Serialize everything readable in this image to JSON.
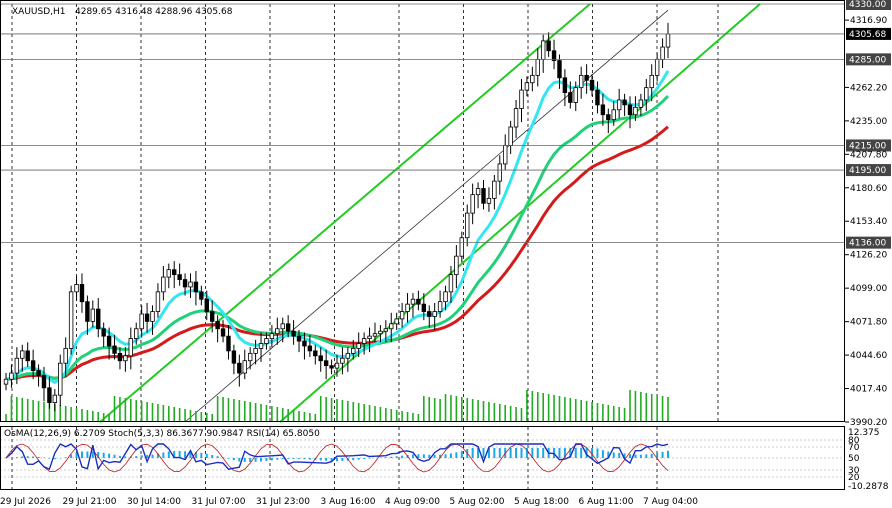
{
  "chart_data": {
    "type": "candlestick",
    "symbol_header": "XAUUSD,H1",
    "ohlc_header": "4289.65 4316.48 4288.96 4305.68",
    "ylim": [
      3990.2,
      4330.0
    ],
    "y_ticks": [
      "4316.90",
      "4262.20",
      "4235.00",
      "4207.80",
      "4180.60",
      "4153.40",
      "4126.20",
      "4099.00",
      "4071.80",
      "4044.60",
      "4017.40",
      "3990.20"
    ],
    "x_ticks": [
      "29 Jul 2026",
      "29 Jul 21:00",
      "30 Jul 14:00",
      "31 Jul 07:00",
      "31 Jul 23:00",
      "3 Aug 16:00",
      "4 Aug 09:00",
      "5 Aug 02:00",
      "5 Aug 18:00",
      "6 Aug 11:00",
      "7 Aug 04:00"
    ],
    "levels": [
      {
        "label": "4330.00",
        "color": "#444444"
      },
      {
        "label": "4305.68",
        "color": "#000000"
      },
      {
        "label": "4285.00",
        "color": "#444444"
      },
      {
        "label": "4215.00",
        "color": "#444444"
      },
      {
        "label": "4195.00",
        "color": "#444444"
      },
      {
        "label": "4136.00",
        "color": "#444444"
      }
    ],
    "closes": [
      4025,
      4030,
      4042,
      4048,
      4040,
      4032,
      4028,
      4018,
      4006,
      4012,
      4038,
      4050,
      4096,
      4102,
      4088,
      4072,
      4082,
      4066,
      4060,
      4052,
      4046,
      4040,
      4044,
      4058,
      4066,
      4078,
      4072,
      4080,
      4096,
      4108,
      4114,
      4110,
      4106,
      4100,
      4104,
      4096,
      4090,
      4080,
      4072,
      4066,
      4060,
      4048,
      4038,
      4030,
      4040,
      4046,
      4050,
      4054,
      4058,
      4062,
      4066,
      4070,
      4064,
      4060,
      4056,
      4052,
      4048,
      4044,
      4040,
      4036,
      4034,
      4038,
      4042,
      4046,
      4050,
      4054,
      4058,
      4060,
      4062,
      4064,
      4066,
      4070,
      4074,
      4080,
      4086,
      4090,
      4086,
      4080,
      4076,
      4080,
      4088,
      4096,
      4110,
      4125,
      4140,
      4160,
      4175,
      4180,
      4168,
      4172,
      4186,
      4200,
      4215,
      4230,
      4245,
      4260,
      4266,
      4272,
      4285,
      4300,
      4292,
      4284,
      4270,
      4258,
      4250,
      4262,
      4272,
      4268,
      4260,
      4248,
      4240,
      4236,
      4244,
      4252,
      4248,
      4240,
      4246,
      4252,
      4262,
      4272,
      4285,
      4295,
      4305.68
    ],
    "ema_fast": {
      "name": "",
      "color": "#33e6f0"
    },
    "ema_mid": {
      "name": "",
      "color": "#22d07a"
    },
    "ema_slow": {
      "name": "",
      "color": "#d41a1a"
    },
    "channel": {
      "color": "#22cc22"
    },
    "indicator_header": "OsMA(12,26,9) 6.2709 Stoch(5,3,3) 86.3677 90.9847 RSI(14) 65.8050",
    "indicator_ticks": [
      "12.375",
      "80",
      "70",
      "50",
      "30",
      "20",
      "-10.2878"
    ]
  }
}
